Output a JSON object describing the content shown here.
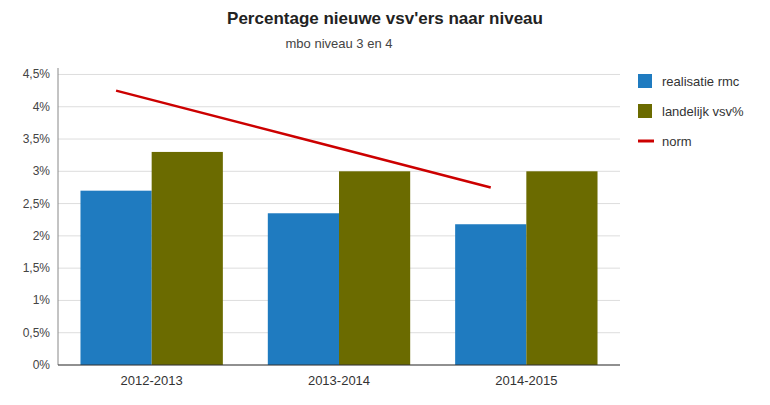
{
  "chart_data": {
    "type": "bar",
    "title": "Percentage nieuwe vsv'ers naar niveau",
    "subtitle": "mbo niveau 3 en 4",
    "categories": [
      "2012-2013",
      "2013-2014",
      "2014-2015"
    ],
    "series": [
      {
        "name": "realisatie rmc",
        "type": "bar",
        "color": "#1F7BC0",
        "values": [
          0.027,
          0.0235,
          0.0218
        ]
      },
      {
        "name": "landelijk vsv%",
        "type": "bar",
        "color": "#6B6B00",
        "values": [
          0.033,
          0.03,
          0.03
        ]
      },
      {
        "name": "norm",
        "type": "line",
        "color": "#CC0000",
        "values": [
          0.0425,
          0.035,
          0.0275
        ]
      }
    ],
    "ylim": [
      0,
      0.046
    ],
    "yticks": [
      {
        "value": 0,
        "label": "0%"
      },
      {
        "value": 0.005,
        "label": "0,5%"
      },
      {
        "value": 0.01,
        "label": "1%"
      },
      {
        "value": 0.015,
        "label": "1,5%"
      },
      {
        "value": 0.02,
        "label": "2%"
      },
      {
        "value": 0.025,
        "label": "2,5%"
      },
      {
        "value": 0.03,
        "label": "3%"
      },
      {
        "value": 0.035,
        "label": "3,5%"
      },
      {
        "value": 0.04,
        "label": "4%"
      },
      {
        "value": 0.045,
        "label": "4,5%"
      }
    ],
    "grid": true,
    "legend": "right"
  }
}
